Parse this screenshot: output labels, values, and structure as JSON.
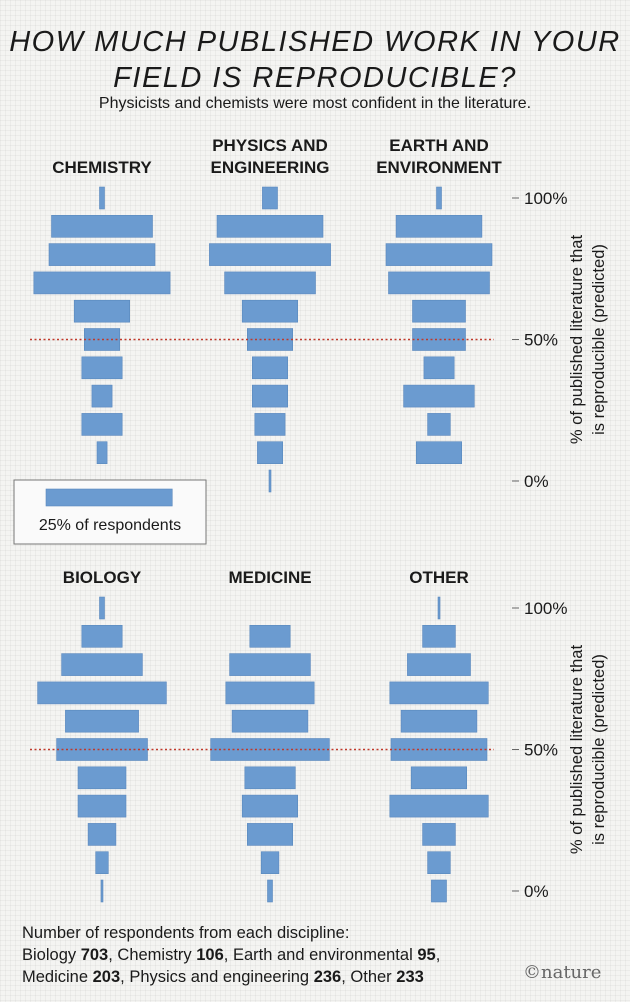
{
  "title_line1": "HOW MUCH PUBLISHED WORK IN YOUR",
  "title_line2": "FIELD IS REPRODUCIBLE?",
  "subtitle": "Physicists and chemists were most confident in the literature.",
  "footer": {
    "intro": "Number of respondents from each discipline:",
    "entries": [
      {
        "label": "Biology ",
        "count": "703",
        "sep": ", "
      },
      {
        "label": "Chemistry ",
        "count": "106",
        "sep": ", "
      },
      {
        "label": "Earth and environmental ",
        "count": "95",
        "sep": ","
      },
      {
        "label": "Medicine ",
        "count": "203",
        "sep": ", "
      },
      {
        "label": "Physics and engineering ",
        "count": "236",
        "sep": ", "
      },
      {
        "label": "Other ",
        "count": "233",
        "sep": ""
      }
    ]
  },
  "logo": "©nature",
  "colors": {
    "bar": "#6b9bd0",
    "bar_edge": "#5a88bd",
    "reference_line": "#c0392b"
  },
  "chart_data": {
    "type": "bar",
    "orientation": "horizontal-symmetric",
    "y": [
      100,
      90,
      80,
      70,
      60,
      50,
      40,
      30,
      20,
      10,
      0
    ],
    "y_unit": "%",
    "ylabel": "% of published literature that is reproducible (predicted)",
    "ylim": [
      0,
      100
    ],
    "y_tick_labels": [
      "100%",
      "50%",
      "0%"
    ],
    "reference_line": 50,
    "legend": {
      "value": 25,
      "label": "25% of respondents",
      "position": "left, between rows"
    },
    "panels": [
      {
        "name": "CHEMISTRY",
        "values": [
          1.0,
          20.0,
          21.0,
          27.0,
          11.0,
          7.0,
          8.0,
          4.0,
          8.0,
          2.0,
          0.0
        ]
      },
      {
        "name": "PHYSICS AND ENGINEERING",
        "values": [
          3.0,
          21.0,
          24.0,
          18.0,
          11.0,
          9.0,
          7.0,
          7.0,
          6.0,
          5.0,
          0.3
        ]
      },
      {
        "name": "EARTH AND ENVIRONMENT",
        "values": [
          1.0,
          17.0,
          21.0,
          20.0,
          10.5,
          10.5,
          6.0,
          14.0,
          4.5,
          9.0,
          0.0
        ]
      },
      {
        "name": "BIOLOGY",
        "values": [
          1.0,
          8.0,
          16.0,
          25.5,
          14.5,
          18.0,
          9.5,
          9.5,
          5.5,
          2.5,
          0.2
        ]
      },
      {
        "name": "MEDICINE",
        "values": [
          0.0,
          8.0,
          16.0,
          17.5,
          15.0,
          23.5,
          10.0,
          11.0,
          9.0,
          3.5,
          1.0
        ]
      },
      {
        "name": "OTHER",
        "values": [
          0.3,
          6.5,
          12.5,
          19.5,
          15.0,
          19.0,
          11.0,
          19.5,
          6.5,
          4.5,
          3.0
        ]
      }
    ]
  }
}
